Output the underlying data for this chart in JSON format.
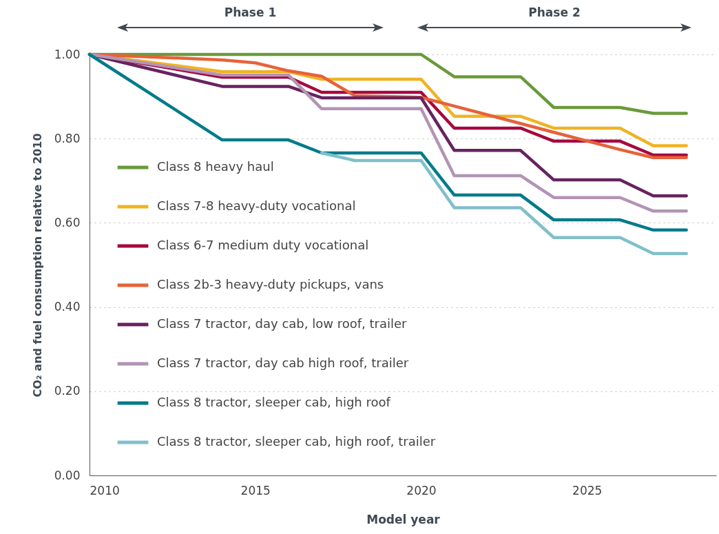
{
  "chart_data": {
    "type": "line",
    "xlabel": "Model year",
    "ylabel": "CO₂ and fuel consumption relative to 2010",
    "x": [
      2010,
      2014,
      2016,
      2017,
      2020,
      2021,
      2023,
      2024,
      2026,
      2027,
      2028
    ],
    "xlim": [
      2010,
      2028.9
    ],
    "xticks": [
      2010,
      2015,
      2020,
      2025
    ],
    "ylim": [
      0,
      1
    ],
    "yticks": [
      {
        "value": 0,
        "label": "0.00"
      },
      {
        "value": 0.2,
        "label": "0.20"
      },
      {
        "value": 0.4,
        "label": "0.40"
      },
      {
        "value": 0.6,
        "label": "0.60"
      },
      {
        "value": 0.8,
        "label": "0.80"
      },
      {
        "value": 1,
        "label": "1.00"
      }
    ],
    "grid": "y",
    "legend": "bottom left",
    "annotations": [
      "Phase 1",
      "Phase 2"
    ],
    "series": [
      {
        "name": "Class 8 heavy haul",
        "color": "#6a9a3a",
        "values": [
          1,
          1,
          1,
          1,
          1,
          0.947,
          0.947,
          0.874,
          0.874,
          0.86,
          0.86
        ]
      },
      {
        "name": "Class 7-8 heavy-duty vocational",
        "color": "#f0b323",
        "values": [
          1,
          0.959,
          0.959,
          0.941,
          0.941,
          0.853,
          0.853,
          0.825,
          0.825,
          0.783,
          0.783
        ]
      },
      {
        "name": "Class 6-7 medium duty vocational",
        "color": "#a6093d",
        "values": [
          1,
          0.946,
          0.946,
          0.91,
          0.91,
          0.825,
          0.825,
          0.794,
          0.794,
          0.761,
          0.761
        ]
      },
      {
        "name": "Class 2b-3 heavy-duty pickups, vans",
        "color": "#e5633a",
        "x": [
          2010,
          2014,
          2015,
          2016,
          2017,
          2018,
          2020,
          2023,
          2024,
          2026,
          2027,
          2028
        ],
        "values": [
          1,
          0.987,
          0.98,
          0.961,
          0.948,
          0.902,
          0.898,
          0.836,
          0.815,
          0.774,
          0.755,
          0.755
        ]
      },
      {
        "name": "Class 7 tractor, day cab, low roof, trailer",
        "color": "#66235f",
        "values": [
          1,
          0.924,
          0.924,
          0.897,
          0.897,
          0.772,
          0.772,
          0.702,
          0.702,
          0.664,
          0.664
        ]
      },
      {
        "name": "Class 7 tractor, day cab high roof, trailer",
        "color": "#b394b5",
        "values": [
          1,
          0.951,
          0.951,
          0.871,
          0.871,
          0.712,
          0.712,
          0.66,
          0.66,
          0.628,
          0.628
        ]
      },
      {
        "name": "Class 8 tractor, sleeper cab, high roof",
        "color": "#007a8a",
        "values": [
          1,
          0.797,
          0.797,
          0.766,
          0.766,
          0.666,
          0.666,
          0.607,
          0.607,
          0.583,
          0.583
        ]
      },
      {
        "name": "Class 8 tractor, sleeper cab, high roof, trailer",
        "color": "#7fbfca",
        "x": [
          2017,
          2018,
          2020,
          2021,
          2023,
          2024,
          2026,
          2027,
          2028
        ],
        "values": [
          0.766,
          0.748,
          0.748,
          0.636,
          0.636,
          0.565,
          0.565,
          0.527,
          0.527
        ]
      }
    ]
  }
}
